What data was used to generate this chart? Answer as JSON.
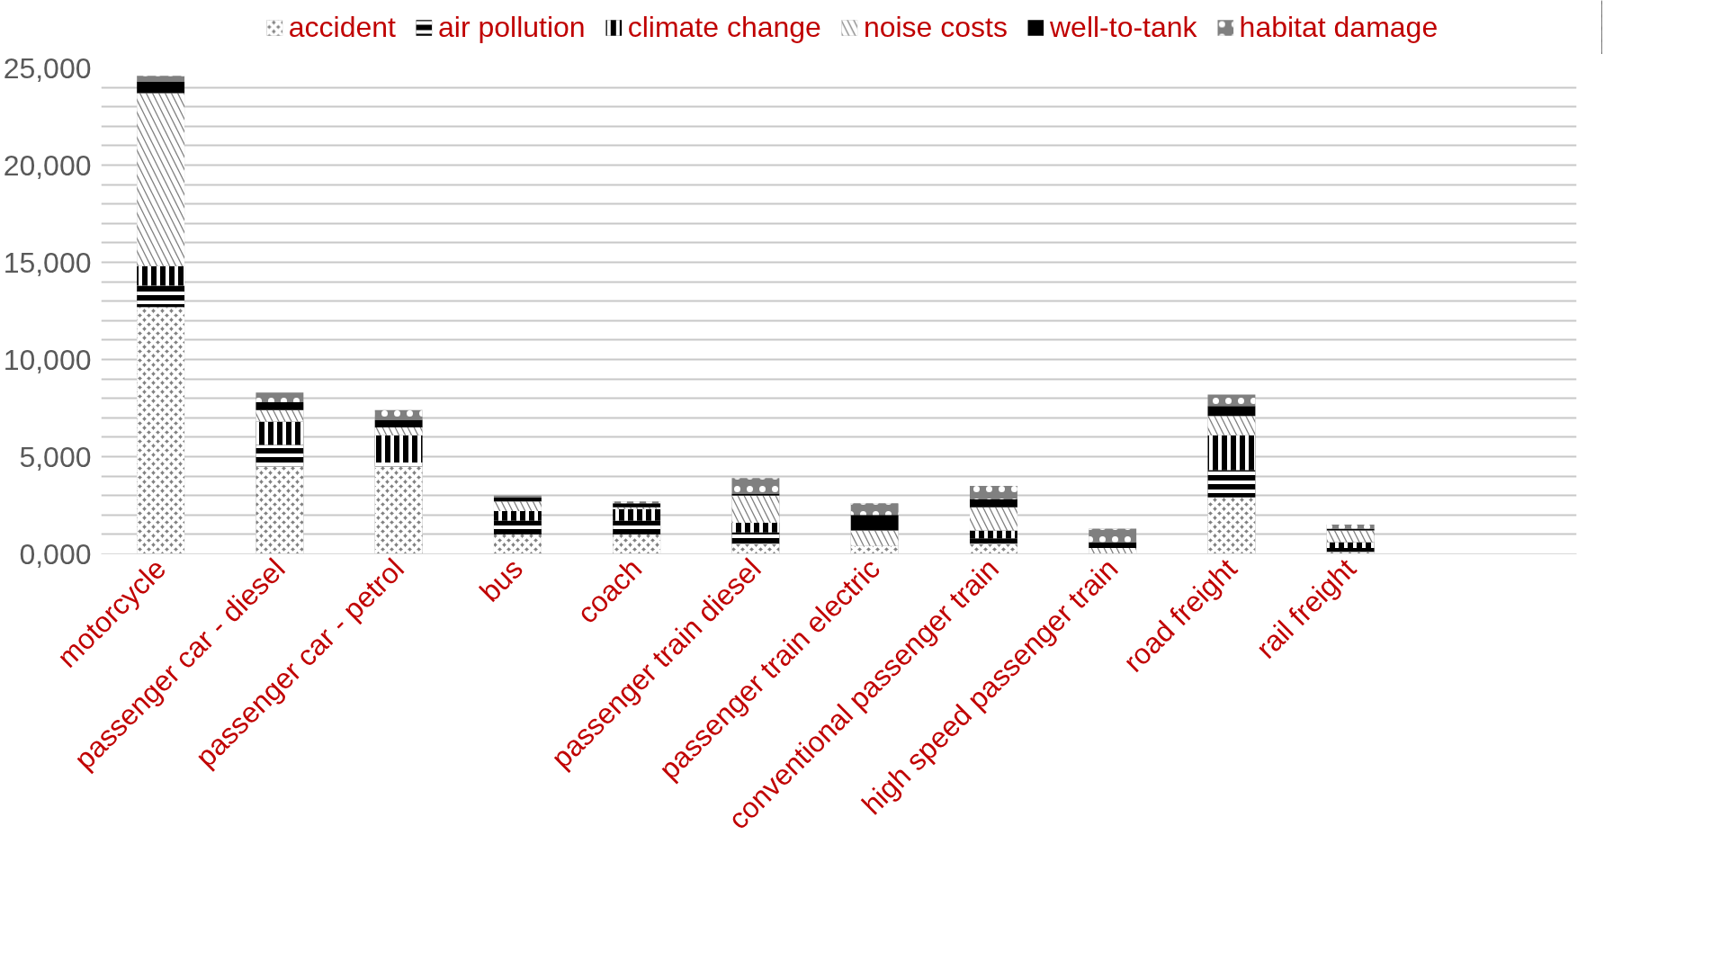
{
  "chart_data": {
    "type": "bar",
    "stacked": true,
    "legend": "top",
    "grid": "y",
    "categories": [
      "motorcycle",
      "passenger car - diesel",
      "passenger car - petrol",
      "bus",
      "coach",
      "passenger train diesel",
      "passenger train electric",
      "conventional passenger train",
      "high speed passenger train",
      "road freight",
      "rail freight"
    ],
    "ylim": [
      0,
      25000
    ],
    "yticks": [
      {
        "value": 0,
        "label": "0,000"
      },
      {
        "value": 1000,
        "label": null
      },
      {
        "value": 2000,
        "label": null
      },
      {
        "value": 3000,
        "label": null
      },
      {
        "value": 4000,
        "label": null
      },
      {
        "value": 5000,
        "label": "5,000"
      },
      {
        "value": 6000,
        "label": null
      },
      {
        "value": 7000,
        "label": null
      },
      {
        "value": 8000,
        "label": null
      },
      {
        "value": 9000,
        "label": null
      },
      {
        "value": 10000,
        "label": "10,000"
      },
      {
        "value": 11000,
        "label": null
      },
      {
        "value": 12000,
        "label": null
      },
      {
        "value": 13000,
        "label": null
      },
      {
        "value": 14000,
        "label": null
      },
      {
        "value": 15000,
        "label": "15,000"
      },
      {
        "value": 16000,
        "label": null
      },
      {
        "value": 17000,
        "label": null
      },
      {
        "value": 18000,
        "label": null
      },
      {
        "value": 19000,
        "label": null
      },
      {
        "value": 20000,
        "label": "20,000"
      },
      {
        "value": 21000,
        "label": null
      },
      {
        "value": 22000,
        "label": null
      },
      {
        "value": 23000,
        "label": null
      },
      {
        "value": 24000,
        "label": null
      },
      {
        "value": 25000,
        "label": "25,000"
      }
    ],
    "series": [
      {
        "name": "accident",
        "color": "#808080",
        "values": [
          12700,
          4500,
          4500,
          1000,
          1000,
          500,
          400,
          500,
          0,
          2900,
          100
        ]
      },
      {
        "name": "air pollution",
        "color": "#000000",
        "values": [
          1100,
          1100,
          200,
          700,
          700,
          600,
          0,
          300,
          0,
          1400,
          200
        ]
      },
      {
        "name": "climate change",
        "color": "#000000",
        "values": [
          1000,
          1200,
          1400,
          500,
          600,
          500,
          0,
          400,
          0,
          1800,
          300
        ]
      },
      {
        "name": "noise costs",
        "color": "#808080",
        "values": [
          8900,
          600,
          400,
          500,
          100,
          1400,
          800,
          1200,
          300,
          1000,
          600
        ]
      },
      {
        "name": "well-to-tank",
        "color": "#000000",
        "values": [
          600,
          400,
          400,
          200,
          200,
          100,
          800,
          400,
          300,
          500,
          100
        ]
      },
      {
        "name": "habitat damage",
        "color": "#808080",
        "values": [
          300,
          500,
          500,
          100,
          100,
          800,
          600,
          700,
          700,
          600,
          200
        ]
      }
    ]
  }
}
